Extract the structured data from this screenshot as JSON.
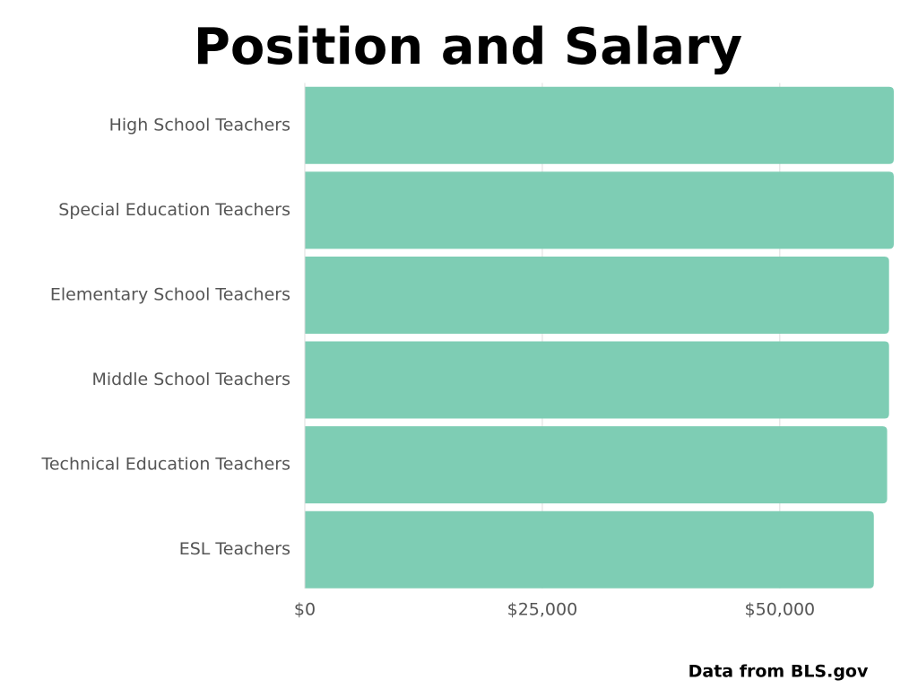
{
  "chart_data": {
    "type": "barh",
    "title": "Position and Salary",
    "categories": [
      "High School Teachers",
      "Special Education Teachers",
      "Elementary School Teachers",
      "Middle School Teachers",
      "Technical Education Teachers",
      "ESL Teachers"
    ],
    "values": [
      62000,
      62000,
      61500,
      61500,
      61300,
      59900
    ],
    "color": "#7ecdb4",
    "xlim": [
      0,
      62000
    ],
    "xticks": [
      {
        "value": 0,
        "label": "$0"
      },
      {
        "value": 25000,
        "label": "$25,000"
      },
      {
        "value": 50000,
        "label": "$50,000"
      }
    ],
    "grid": true,
    "source": "Data from BLS.gov"
  }
}
